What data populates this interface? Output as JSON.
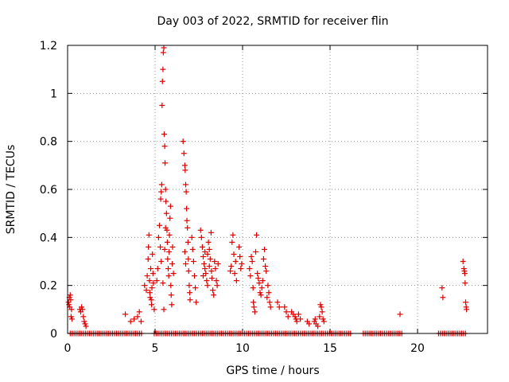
{
  "chart_data": {
    "type": "scatter",
    "title": "Day 003 of 2022, SRMTID for receiver flin",
    "xlabel": "GPS time / hours",
    "ylabel": "SRMTID / TECUs",
    "xlim": [
      0,
      24
    ],
    "ylim": [
      0,
      1.2
    ],
    "xticks": [
      0,
      5,
      10,
      15,
      20
    ],
    "yticks": [
      0,
      0.2,
      0.4,
      0.6,
      0.8,
      1,
      1.2
    ],
    "ytick_labels": [
      "0",
      "0.2",
      "0.4",
      "0.6",
      "0.8",
      "1",
      "1.2"
    ],
    "grid": true,
    "marker": "+",
    "color": "#dd0000",
    "series": [
      {
        "name": "SRMTID",
        "points": [
          [
            0.05,
            0.13
          ],
          [
            0.08,
            0.12
          ],
          [
            0.1,
            0.15
          ],
          [
            0.12,
            0.11
          ],
          [
            0.15,
            0.16
          ],
          [
            0.18,
            0.14
          ],
          [
            0.2,
            0.07
          ],
          [
            0.22,
            0.1
          ],
          [
            0.25,
            0.06
          ],
          [
            0.7,
            0.1
          ],
          [
            0.75,
            0.09
          ],
          [
            0.8,
            0.11
          ],
          [
            0.85,
            0.1
          ],
          [
            0.9,
            0.07
          ],
          [
            0.95,
            0.05
          ],
          [
            1.0,
            0.04
          ],
          [
            1.05,
            0.03
          ],
          [
            3.3,
            0.08
          ],
          [
            3.6,
            0.05
          ],
          [
            3.8,
            0.06
          ],
          [
            4.0,
            0.07
          ],
          [
            4.1,
            0.09
          ],
          [
            4.2,
            0.05
          ],
          [
            4.4,
            0.2
          ],
          [
            4.5,
            0.18
          ],
          [
            4.55,
            0.24
          ],
          [
            4.6,
            0.31
          ],
          [
            4.62,
            0.36
          ],
          [
            4.65,
            0.41
          ],
          [
            4.68,
            0.22
          ],
          [
            4.7,
            0.17
          ],
          [
            4.72,
            0.15
          ],
          [
            4.75,
            0.27
          ],
          [
            4.78,
            0.14
          ],
          [
            4.8,
            0.12
          ],
          [
            4.82,
            0.19
          ],
          [
            4.85,
            0.33
          ],
          [
            4.88,
            0.25
          ],
          [
            4.9,
            0.21
          ],
          [
            4.95,
            0.1
          ],
          [
            5.1,
            0.22
          ],
          [
            5.15,
            0.27
          ],
          [
            5.2,
            0.4
          ],
          [
            5.25,
            0.45
          ],
          [
            5.3,
            0.36
          ],
          [
            5.32,
            0.56
          ],
          [
            5.35,
            0.59
          ],
          [
            5.38,
            0.62
          ],
          [
            5.4,
            0.95
          ],
          [
            5.42,
            1.05
          ],
          [
            5.45,
            1.1
          ],
          [
            5.47,
            1.17
          ],
          [
            5.5,
            1.19
          ],
          [
            5.52,
            0.83
          ],
          [
            5.55,
            0.78
          ],
          [
            5.57,
            0.71
          ],
          [
            5.6,
            0.6
          ],
          [
            5.62,
            0.55
          ],
          [
            5.65,
            0.5
          ],
          [
            5.68,
            0.43
          ],
          [
            5.7,
            0.38
          ],
          [
            5.72,
            0.31
          ],
          [
            5.75,
            0.27
          ],
          [
            5.78,
            0.24
          ],
          [
            5.8,
            0.34
          ],
          [
            5.82,
            0.41
          ],
          [
            5.85,
            0.48
          ],
          [
            5.88,
            0.53
          ],
          [
            5.9,
            0.2
          ],
          [
            5.92,
            0.16
          ],
          [
            5.95,
            0.12
          ],
          [
            5.5,
            0.1
          ],
          [
            5.45,
            0.21
          ],
          [
            5.35,
            0.3
          ],
          [
            5.55,
            0.35
          ],
          [
            5.6,
            0.44
          ],
          [
            5.98,
            0.29
          ],
          [
            6.0,
            0.36
          ],
          [
            6.05,
            0.25
          ],
          [
            6.6,
            0.8
          ],
          [
            6.65,
            0.75
          ],
          [
            6.7,
            0.7
          ],
          [
            6.72,
            0.68
          ],
          [
            6.75,
            0.62
          ],
          [
            6.78,
            0.59
          ],
          [
            6.8,
            0.52
          ],
          [
            6.82,
            0.47
          ],
          [
            6.85,
            0.44
          ],
          [
            6.88,
            0.38
          ],
          [
            6.9,
            0.31
          ],
          [
            6.92,
            0.26
          ],
          [
            6.95,
            0.2
          ],
          [
            6.98,
            0.17
          ],
          [
            7.0,
            0.14
          ],
          [
            6.7,
            0.34
          ],
          [
            6.75,
            0.29
          ],
          [
            7.1,
            0.4
          ],
          [
            7.15,
            0.35
          ],
          [
            7.2,
            0.3
          ],
          [
            7.25,
            0.24
          ],
          [
            7.3,
            0.19
          ],
          [
            7.35,
            0.13
          ],
          [
            7.6,
            0.43
          ],
          [
            7.65,
            0.4
          ],
          [
            7.7,
            0.36
          ],
          [
            7.75,
            0.32
          ],
          [
            7.8,
            0.29
          ],
          [
            7.85,
            0.27
          ],
          [
            7.9,
            0.25
          ],
          [
            7.95,
            0.22
          ],
          [
            8.0,
            0.2
          ],
          [
            8.05,
            0.38
          ],
          [
            8.1,
            0.35
          ],
          [
            8.15,
            0.31
          ],
          [
            8.2,
            0.42
          ],
          [
            8.22,
            0.26
          ],
          [
            8.25,
            0.23
          ],
          [
            8.3,
            0.18
          ],
          [
            8.35,
            0.16
          ],
          [
            8.4,
            0.3
          ],
          [
            8.45,
            0.27
          ],
          [
            8.5,
            0.22
          ],
          [
            8.55,
            0.2
          ],
          [
            8.6,
            0.29
          ],
          [
            7.75,
            0.24
          ],
          [
            7.85,
            0.34
          ],
          [
            8.0,
            0.33
          ],
          [
            8.1,
            0.28
          ],
          [
            9.3,
            0.26
          ],
          [
            9.35,
            0.28
          ],
          [
            9.4,
            0.38
          ],
          [
            9.45,
            0.41
          ],
          [
            9.5,
            0.33
          ],
          [
            9.55,
            0.25
          ],
          [
            9.6,
            0.3
          ],
          [
            9.65,
            0.22
          ],
          [
            9.8,
            0.36
          ],
          [
            9.85,
            0.32
          ],
          [
            9.9,
            0.27
          ],
          [
            9.95,
            0.29
          ],
          [
            10.4,
            0.27
          ],
          [
            10.45,
            0.24
          ],
          [
            10.5,
            0.32
          ],
          [
            10.55,
            0.3
          ],
          [
            10.6,
            0.19
          ],
          [
            10.62,
            0.13
          ],
          [
            10.65,
            0.11
          ],
          [
            10.7,
            0.09
          ],
          [
            10.75,
            0.34
          ],
          [
            10.8,
            0.41
          ],
          [
            10.85,
            0.25
          ],
          [
            10.9,
            0.23
          ],
          [
            10.95,
            0.21
          ],
          [
            11.0,
            0.17
          ],
          [
            11.05,
            0.16
          ],
          [
            11.1,
            0.19
          ],
          [
            11.15,
            0.22
          ],
          [
            11.2,
            0.31
          ],
          [
            11.25,
            0.35
          ],
          [
            11.3,
            0.28
          ],
          [
            11.35,
            0.26
          ],
          [
            11.4,
            0.15
          ],
          [
            11.45,
            0.2
          ],
          [
            11.5,
            0.17
          ],
          [
            11.55,
            0.13
          ],
          [
            11.6,
            0.11
          ],
          [
            12.0,
            0.13
          ],
          [
            12.1,
            0.11
          ],
          [
            12.4,
            0.11
          ],
          [
            12.5,
            0.09
          ],
          [
            12.6,
            0.07
          ],
          [
            12.8,
            0.09
          ],
          [
            12.9,
            0.08
          ],
          [
            13.0,
            0.07
          ],
          [
            13.05,
            0.06
          ],
          [
            13.1,
            0.05
          ],
          [
            13.2,
            0.08
          ],
          [
            13.3,
            0.06
          ],
          [
            13.7,
            0.05
          ],
          [
            13.8,
            0.04
          ],
          [
            14.1,
            0.05
          ],
          [
            14.15,
            0.06
          ],
          [
            14.2,
            0.04
          ],
          [
            14.3,
            0.03
          ],
          [
            14.4,
            0.07
          ],
          [
            14.45,
            0.12
          ],
          [
            14.5,
            0.11
          ],
          [
            14.55,
            0.09
          ],
          [
            14.6,
            0.06
          ],
          [
            14.65,
            0.05
          ],
          [
            19.0,
            0.08
          ],
          [
            21.4,
            0.19
          ],
          [
            21.45,
            0.15
          ],
          [
            22.6,
            0.3
          ],
          [
            22.65,
            0.27
          ],
          [
            22.68,
            0.26
          ],
          [
            22.7,
            0.25
          ],
          [
            22.72,
            0.21
          ],
          [
            22.75,
            0.13
          ],
          [
            22.78,
            0.11
          ],
          [
            22.8,
            0.1
          ]
        ],
        "zero_ranges": [
          [
            0.15,
            4.25
          ],
          [
            4.95,
            16.2
          ],
          [
            16.9,
            19.1
          ],
          [
            21.2,
            22.8
          ]
        ],
        "zero_step": 0.11
      }
    ]
  }
}
